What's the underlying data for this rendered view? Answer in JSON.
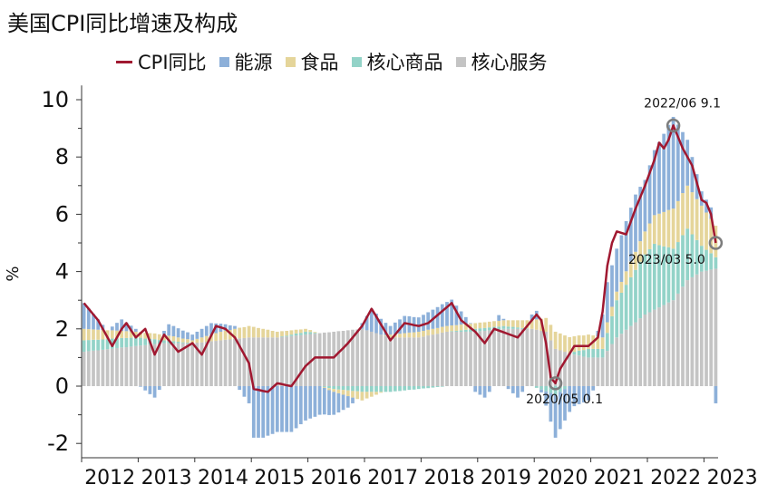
{
  "chart_data": {
    "type": "bar",
    "title": "美国CPI同比增速及构成",
    "ylabel": "%",
    "ylim": [
      -2.5,
      10.5
    ],
    "yticks": [
      -2,
      0,
      2,
      4,
      6,
      8,
      10
    ],
    "grid": false,
    "legend_position": "top",
    "x_start": "2012-01",
    "x_end": "2023-03",
    "xtick_labels": [
      "2012",
      "2013",
      "2014",
      "2015",
      "2016",
      "2017",
      "2018",
      "2019",
      "2020",
      "2021",
      "2022",
      "2023"
    ],
    "series": [
      {
        "name": "CPI同比",
        "kind": "line",
        "color": "#a01830"
      },
      {
        "name": "能源",
        "kind": "bar",
        "color": "#8db0d9"
      },
      {
        "name": "食品",
        "kind": "bar",
        "color": "#e5d59a"
      },
      {
        "name": "核心商品",
        "kind": "bar",
        "color": "#93d3c8"
      },
      {
        "name": "核心服务",
        "kind": "bar",
        "color": "#c4c4c4"
      }
    ],
    "annotations": [
      {
        "date": "2022/06",
        "value": 9.1,
        "text": "2022/06 9.1"
      },
      {
        "date": "2020/05",
        "value": 0.1,
        "text": "2020/05 0.1"
      },
      {
        "date": "2023/03",
        "value": 5.0,
        "text": "2023/03 5.0"
      }
    ],
    "anchor_points": {
      "cpi": [
        [
          "2012-01",
          2.9
        ],
        [
          "2012-04",
          2.3
        ],
        [
          "2012-06",
          1.7
        ],
        [
          "2012-07",
          1.4
        ],
        [
          "2012-09",
          2.0
        ],
        [
          "2012-10",
          2.2
        ],
        [
          "2012-12",
          1.7
        ],
        [
          "2013-02",
          2.0
        ],
        [
          "2013-04",
          1.1
        ],
        [
          "2013-06",
          1.8
        ],
        [
          "2013-09",
          1.2
        ],
        [
          "2013-12",
          1.5
        ],
        [
          "2014-02",
          1.1
        ],
        [
          "2014-05",
          2.1
        ],
        [
          "2014-07",
          2.0
        ],
        [
          "2014-09",
          1.7
        ],
        [
          "2014-12",
          0.8
        ],
        [
          "2015-01",
          -0.1
        ],
        [
          "2015-04",
          -0.2
        ],
        [
          "2015-06",
          0.1
        ],
        [
          "2015-09",
          0.0
        ],
        [
          "2015-12",
          0.7
        ],
        [
          "2016-02",
          1.0
        ],
        [
          "2016-06",
          1.0
        ],
        [
          "2016-09",
          1.5
        ],
        [
          "2016-12",
          2.1
        ],
        [
          "2017-02",
          2.7
        ],
        [
          "2017-06",
          1.6
        ],
        [
          "2017-09",
          2.2
        ],
        [
          "2017-12",
          2.1
        ],
        [
          "2018-02",
          2.2
        ],
        [
          "2018-07",
          2.9
        ],
        [
          "2018-09",
          2.3
        ],
        [
          "2018-12",
          1.9
        ],
        [
          "2019-02",
          1.5
        ],
        [
          "2019-04",
          2.0
        ],
        [
          "2019-09",
          1.7
        ],
        [
          "2019-12",
          2.3
        ],
        [
          "2020-01",
          2.5
        ],
        [
          "2020-02",
          2.3
        ],
        [
          "2020-03",
          1.5
        ],
        [
          "2020-04",
          0.3
        ],
        [
          "2020-05",
          0.1
        ],
        [
          "2020-06",
          0.6
        ],
        [
          "2020-09",
          1.4
        ],
        [
          "2020-12",
          1.4
        ],
        [
          "2021-02",
          1.7
        ],
        [
          "2021-03",
          2.6
        ],
        [
          "2021-04",
          4.2
        ],
        [
          "2021-05",
          5.0
        ],
        [
          "2021-06",
          5.4
        ],
        [
          "2021-08",
          5.3
        ],
        [
          "2021-10",
          6.2
        ],
        [
          "2021-12",
          7.0
        ],
        [
          "2022-02",
          7.9
        ],
        [
          "2022-03",
          8.5
        ],
        [
          "2022-04",
          8.3
        ],
        [
          "2022-05",
          8.6
        ],
        [
          "2022-06",
          9.1
        ],
        [
          "2022-08",
          8.3
        ],
        [
          "2022-10",
          7.7
        ],
        [
          "2022-12",
          6.5
        ],
        [
          "2023-01",
          6.4
        ],
        [
          "2023-02",
          6.0
        ],
        [
          "2023-03",
          5.0
        ]
      ],
      "energy": [
        [
          "2012-01",
          0.9
        ],
        [
          "2012-06",
          0.0
        ],
        [
          "2012-09",
          0.4
        ],
        [
          "2012-12",
          0.1
        ],
        [
          "2013-04",
          -0.4
        ],
        [
          "2013-07",
          0.4
        ],
        [
          "2013-12",
          0.2
        ],
        [
          "2014-04",
          0.4
        ],
        [
          "2014-09",
          0.1
        ],
        [
          "2014-12",
          -0.6
        ],
        [
          "2015-01",
          -1.8
        ],
        [
          "2015-03",
          -1.8
        ],
        [
          "2015-06",
          -1.6
        ],
        [
          "2015-09",
          -1.6
        ],
        [
          "2015-12",
          -1.2
        ],
        [
          "2016-03",
          -1.0
        ],
        [
          "2016-06",
          -0.8
        ],
        [
          "2016-09",
          -0.4
        ],
        [
          "2016-12",
          0.2
        ],
        [
          "2017-02",
          0.8
        ],
        [
          "2017-06",
          0.3
        ],
        [
          "2017-09",
          0.6
        ],
        [
          "2017-12",
          0.5
        ],
        [
          "2018-07",
          0.9
        ],
        [
          "2018-12",
          -0.2
        ],
        [
          "2019-02",
          -0.4
        ],
        [
          "2019-05",
          0.2
        ],
        [
          "2019-09",
          -0.4
        ],
        [
          "2019-12",
          0.2
        ],
        [
          "2020-01",
          0.3
        ],
        [
          "2020-03",
          -0.5
        ],
        [
          "2020-05",
          -1.5
        ],
        [
          "2020-09",
          -0.7
        ],
        [
          "2020-12",
          -0.5
        ],
        [
          "2021-02",
          0.2
        ],
        [
          "2021-04",
          1.4
        ],
        [
          "2021-06",
          1.5
        ],
        [
          "2021-10",
          2.0
        ],
        [
          "2021-12",
          1.8
        ],
        [
          "2022-03",
          2.5
        ],
        [
          "2022-06",
          3.2
        ],
        [
          "2022-09",
          1.6
        ],
        [
          "2022-12",
          0.5
        ],
        [
          "2023-02",
          0.4
        ],
        [
          "2023-03",
          -0.6
        ]
      ],
      "food": [
        [
          "2012-01",
          0.4
        ],
        [
          "2012-12",
          0.2
        ],
        [
          "2013-06",
          0.2
        ],
        [
          "2013-12",
          0.1
        ],
        [
          "2014-06",
          0.3
        ],
        [
          "2014-12",
          0.4
        ],
        [
          "2015-06",
          0.2
        ],
        [
          "2015-12",
          0.1
        ],
        [
          "2016-06",
          -0.1
        ],
        [
          "2016-12",
          -0.3
        ],
        [
          "2017-06",
          0.1
        ],
        [
          "2017-12",
          0.2
        ],
        [
          "2018-06",
          0.2
        ],
        [
          "2018-12",
          0.2
        ],
        [
          "2019-06",
          0.2
        ],
        [
          "2019-12",
          0.3
        ],
        [
          "2020-05",
          0.6
        ],
        [
          "2020-12",
          0.5
        ],
        [
          "2021-06",
          0.3
        ],
        [
          "2021-12",
          0.8
        ],
        [
          "2022-06",
          1.4
        ],
        [
          "2022-09",
          1.5
        ],
        [
          "2022-12",
          1.4
        ],
        [
          "2023-03",
          1.1
        ]
      ],
      "goods": [
        [
          "2012-01",
          0.4
        ],
        [
          "2012-12",
          0.3
        ],
        [
          "2013-06",
          0.1
        ],
        [
          "2013-12",
          0.0
        ],
        [
          "2014-06",
          0.0
        ],
        [
          "2014-12",
          0.0
        ],
        [
          "2015-06",
          0.0
        ],
        [
          "2015-12",
          0.1
        ],
        [
          "2016-06",
          -0.1
        ],
        [
          "2016-12",
          -0.2
        ],
        [
          "2017-06",
          -0.2
        ],
        [
          "2017-12",
          -0.1
        ],
        [
          "2018-06",
          0.0
        ],
        [
          "2018-12",
          0.1
        ],
        [
          "2019-06",
          0.1
        ],
        [
          "2019-12",
          0.0
        ],
        [
          "2020-05",
          -0.3
        ],
        [
          "2020-09",
          0.1
        ],
        [
          "2020-12",
          0.3
        ],
        [
          "2021-03",
          0.3
        ],
        [
          "2021-06",
          1.3
        ],
        [
          "2021-12",
          2.1
        ],
        [
          "2022-02",
          2.3
        ],
        [
          "2022-06",
          1.8
        ],
        [
          "2022-09",
          1.8
        ],
        [
          "2022-12",
          0.9
        ],
        [
          "2023-03",
          0.4
        ]
      ],
      "services": [
        [
          "2012-01",
          1.2
        ],
        [
          "2012-12",
          1.4
        ],
        [
          "2013-06",
          1.5
        ],
        [
          "2013-12",
          1.5
        ],
        [
          "2014-06",
          1.6
        ],
        [
          "2014-12",
          1.7
        ],
        [
          "2015-06",
          1.7
        ],
        [
          "2015-12",
          1.8
        ],
        [
          "2016-06",
          1.9
        ],
        [
          "2016-12",
          2.0
        ],
        [
          "2017-06",
          1.7
        ],
        [
          "2017-12",
          1.7
        ],
        [
          "2018-06",
          1.9
        ],
        [
          "2018-12",
          1.9
        ],
        [
          "2019-06",
          2.0
        ],
        [
          "2019-12",
          2.0
        ],
        [
          "2020-03",
          1.9
        ],
        [
          "2020-05",
          1.3
        ],
        [
          "2020-09",
          1.1
        ],
        [
          "2020-12",
          1.0
        ],
        [
          "2021-03",
          1.0
        ],
        [
          "2021-06",
          1.7
        ],
        [
          "2021-12",
          2.5
        ],
        [
          "2022-06",
          3.0
        ],
        [
          "2022-09",
          3.7
        ],
        [
          "2022-12",
          4.0
        ],
        [
          "2023-03",
          4.1
        ]
      ]
    }
  }
}
